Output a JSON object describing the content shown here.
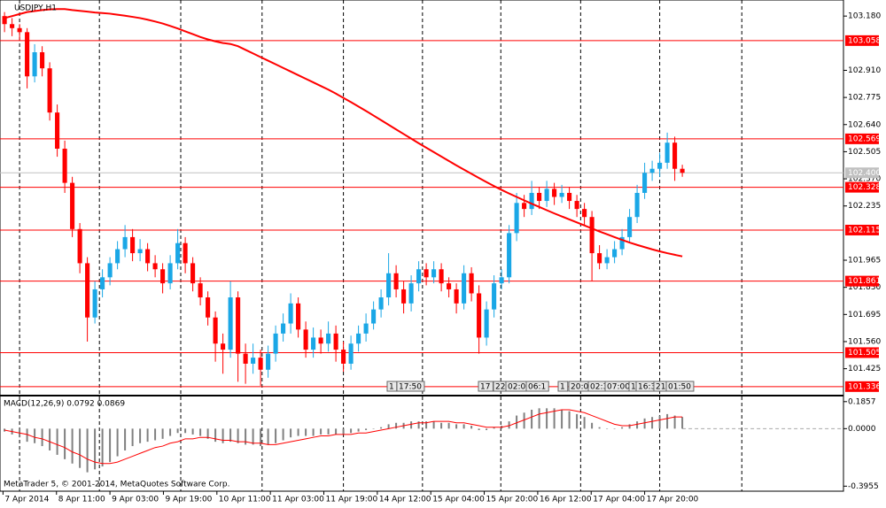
{
  "chart_data": {
    "type": "candlestick",
    "title": "USDJPY,H1",
    "footer": "MetaTrader 5, © 2001-2014, MetaQuotes Software Corp.",
    "bull_color": "#1aa7e6",
    "bear_color": "#ff0000",
    "grid": true,
    "xlim": [
      -0.6,
      111.4
    ],
    "xticks": [
      {
        "value": -0.2,
        "label": "7 Apr 2014"
      },
      {
        "value": 6.9,
        "label": "8 Apr 11:00"
      },
      {
        "value": 14.0,
        "label": "9 Apr 03:00"
      },
      {
        "value": 21.1,
        "label": "9 Apr 19:00"
      },
      {
        "value": 28.2,
        "label": "10 Apr 11:00"
      },
      {
        "value": 35.3,
        "label": "11 Apr 03:00"
      },
      {
        "value": 42.4,
        "label": "11 Apr 19:00"
      },
      {
        "value": 49.5,
        "label": "14 Apr 12:00"
      },
      {
        "value": 56.6,
        "label": "15 Apr 04:00"
      },
      {
        "value": 63.7,
        "label": "15 Apr 20:00"
      },
      {
        "value": 70.8,
        "label": "16 Apr 12:00"
      },
      {
        "value": 77.9,
        "label": "17 Apr 04:00"
      },
      {
        "value": 85.0,
        "label": "17 Apr 20:00"
      }
    ],
    "vgrid": [
      2.0,
      12.6,
      23.4,
      34.2,
      45.0,
      55.5,
      65.9,
      76.5,
      87.0,
      97.9
    ],
    "ylim": [
      101.3,
      103.26
    ],
    "yticks": [
      {
        "value": 103.18,
        "label": "103.180"
      },
      {
        "value": 102.91,
        "label": "102.910"
      },
      {
        "value": 102.775,
        "label": "102.775"
      },
      {
        "value": 102.64,
        "label": "102.640"
      },
      102.505,
      {
        "value": 102.37,
        "label": "102.370"
      },
      102.235,
      101.965,
      {
        "value": 101.83,
        "label": "101.830"
      },
      101.695,
      {
        "value": 101.56,
        "label": "101.560"
      },
      101.425
    ],
    "levels": [
      103.058,
      102.569,
      102.328,
      102.115,
      101.861,
      101.505,
      101.336
    ],
    "level_color": "#ff0000",
    "current_price": {
      "value": 102.4,
      "label": "102.400"
    },
    "events": [
      "1",
      "17:50",
      "17",
      "22",
      "02:00",
      "06:1",
      "1",
      "20:0",
      "02:3",
      "07:00",
      "1",
      "16:3",
      "21:",
      "01:50"
    ],
    "candles": [
      [
        103.18,
        103.2,
        103.1,
        103.14
      ],
      [
        103.14,
        103.17,
        103.08,
        103.12
      ],
      [
        103.12,
        103.14,
        103.06,
        103.1
      ],
      [
        103.1,
        103.12,
        102.82,
        102.88
      ],
      [
        102.88,
        103.04,
        102.85,
        103.0
      ],
      [
        103.0,
        103.03,
        102.88,
        102.92
      ],
      [
        102.92,
        102.95,
        102.66,
        102.7
      ],
      [
        102.7,
        102.74,
        102.48,
        102.52
      ],
      [
        102.52,
        102.56,
        102.3,
        102.35
      ],
      [
        102.35,
        102.38,
        102.08,
        102.12
      ],
      [
        102.12,
        102.15,
        101.9,
        101.95
      ],
      [
        101.95,
        101.98,
        101.56,
        101.68
      ],
      [
        101.68,
        101.86,
        101.65,
        101.82
      ],
      [
        101.82,
        101.92,
        101.78,
        101.88
      ],
      [
        101.88,
        101.98,
        101.84,
        101.95
      ],
      [
        101.95,
        102.06,
        101.92,
        102.02
      ],
      [
        102.02,
        102.14,
        101.98,
        102.08
      ],
      [
        102.08,
        102.12,
        101.96,
        102.0
      ],
      [
        102.0,
        102.07,
        101.96,
        102.02
      ],
      [
        102.02,
        102.05,
        101.91,
        101.95
      ],
      [
        101.95,
        101.99,
        101.88,
        101.92
      ],
      [
        101.92,
        101.95,
        101.8,
        101.85
      ],
      [
        101.85,
        101.99,
        101.82,
        101.95
      ],
      [
        101.95,
        102.12,
        101.92,
        102.05
      ],
      [
        102.05,
        102.08,
        101.9,
        101.95
      ],
      [
        101.95,
        101.98,
        101.81,
        101.85
      ],
      [
        101.85,
        101.88,
        101.74,
        101.78
      ],
      [
        101.78,
        101.81,
        101.64,
        101.68
      ],
      [
        101.68,
        101.71,
        101.46,
        101.55
      ],
      [
        101.55,
        101.6,
        101.4,
        101.52
      ],
      [
        101.52,
        101.86,
        101.48,
        101.78
      ],
      [
        101.78,
        101.81,
        101.36,
        101.5
      ],
      [
        101.5,
        101.55,
        101.35,
        101.45
      ],
      [
        101.45,
        101.55,
        101.4,
        101.48
      ],
      [
        101.48,
        101.52,
        101.34,
        101.42
      ],
      [
        101.42,
        101.54,
        101.38,
        101.5
      ],
      [
        101.5,
        101.64,
        101.46,
        101.6
      ],
      [
        101.6,
        101.7,
        101.56,
        101.65
      ],
      [
        101.65,
        101.8,
        101.6,
        101.75
      ],
      [
        101.75,
        101.78,
        101.58,
        101.62
      ],
      [
        101.62,
        101.66,
        101.48,
        101.52
      ],
      [
        101.52,
        101.63,
        101.48,
        101.58
      ],
      [
        101.58,
        101.62,
        101.5,
        101.55
      ],
      [
        101.55,
        101.66,
        101.51,
        101.6
      ],
      [
        101.6,
        101.64,
        101.46,
        101.52
      ],
      [
        101.52,
        101.56,
        101.41,
        101.45
      ],
      [
        101.45,
        101.59,
        101.42,
        101.55
      ],
      [
        101.55,
        101.64,
        101.51,
        101.6
      ],
      [
        101.6,
        101.7,
        101.56,
        101.65
      ],
      [
        101.65,
        101.76,
        101.62,
        101.72
      ],
      [
        101.72,
        101.82,
        101.68,
        101.78
      ],
      [
        101.78,
        102.0,
        101.74,
        101.9
      ],
      [
        101.9,
        101.94,
        101.78,
        101.82
      ],
      [
        101.82,
        101.86,
        101.7,
        101.75
      ],
      [
        101.75,
        101.89,
        101.71,
        101.85
      ],
      [
        101.85,
        101.96,
        101.81,
        101.92
      ],
      [
        101.92,
        101.95,
        101.84,
        101.88
      ],
      [
        101.88,
        101.96,
        101.85,
        101.92
      ],
      [
        101.92,
        101.95,
        101.81,
        101.85
      ],
      [
        101.85,
        101.88,
        101.78,
        101.82
      ],
      [
        101.82,
        101.85,
        101.7,
        101.75
      ],
      [
        101.75,
        101.94,
        101.72,
        101.9
      ],
      [
        101.9,
        101.93,
        101.76,
        101.8
      ],
      [
        101.8,
        101.84,
        101.5,
        101.58
      ],
      [
        101.58,
        101.76,
        101.54,
        101.72
      ],
      [
        101.72,
        101.89,
        101.68,
        101.85
      ],
      [
        101.85,
        101.92,
        101.82,
        101.88
      ],
      [
        101.88,
        102.14,
        101.85,
        102.1
      ],
      [
        102.1,
        102.3,
        102.06,
        102.25
      ],
      [
        102.25,
        102.29,
        102.18,
        102.22
      ],
      [
        102.22,
        102.36,
        102.19,
        102.3
      ],
      [
        102.3,
        102.33,
        102.22,
        102.26
      ],
      [
        102.26,
        102.36,
        102.23,
        102.32
      ],
      [
        102.32,
        102.35,
        102.24,
        102.28
      ],
      [
        102.28,
        102.34,
        102.25,
        102.3
      ],
      [
        102.3,
        102.33,
        102.22,
        102.26
      ],
      [
        102.26,
        102.29,
        102.18,
        102.22
      ],
      [
        102.22,
        102.25,
        102.14,
        102.18
      ],
      [
        102.18,
        102.21,
        101.86,
        102.0
      ],
      [
        102.0,
        102.04,
        101.92,
        101.95
      ],
      [
        101.95,
        102.02,
        101.92,
        101.98
      ],
      [
        101.98,
        102.06,
        101.95,
        102.02
      ],
      [
        102.02,
        102.12,
        101.99,
        102.08
      ],
      [
        102.08,
        102.22,
        102.05,
        102.18
      ],
      [
        102.18,
        102.34,
        102.15,
        102.3
      ],
      [
        102.3,
        102.45,
        102.27,
        102.4
      ],
      [
        102.4,
        102.46,
        102.36,
        102.42
      ],
      [
        102.42,
        102.5,
        102.38,
        102.45
      ],
      [
        102.45,
        102.6,
        102.42,
        102.55
      ],
      [
        102.55,
        102.58,
        102.36,
        102.42
      ],
      [
        102.42,
        102.44,
        102.38,
        102.4
      ]
    ],
    "ma": {
      "color": "#ff0000",
      "values": [
        103.17,
        103.18,
        103.19,
        103.2,
        103.205,
        103.21,
        103.213,
        103.215,
        103.215,
        103.21,
        103.206,
        103.202,
        103.198,
        103.195,
        103.192,
        103.187,
        103.182,
        103.176,
        103.17,
        103.162,
        103.153,
        103.143,
        103.131,
        103.118,
        103.104,
        103.09,
        103.076,
        103.064,
        103.054,
        103.046,
        103.041,
        103.03,
        103.012,
        102.994,
        102.976,
        102.958,
        102.94,
        102.922,
        102.904,
        102.886,
        102.868,
        102.85,
        102.832,
        102.814,
        102.794,
        102.773,
        102.752,
        102.73,
        102.708,
        102.685,
        102.662,
        102.639,
        102.616,
        102.593,
        102.57,
        102.547,
        102.525,
        102.503,
        102.481,
        102.459,
        102.437,
        102.416,
        102.395,
        102.374,
        102.354,
        102.334,
        102.315,
        102.297,
        102.28,
        102.263,
        102.246,
        102.23,
        102.214,
        102.198,
        102.183,
        102.168,
        102.153,
        102.138,
        102.123,
        102.108,
        102.094,
        102.08,
        102.066,
        102.053,
        102.041,
        102.03,
        102.019,
        102.009,
        102.0,
        101.992,
        101.984
      ]
    },
    "macd": {
      "label": "MACD(12,26,9) 0.0792 0.0869",
      "ylim": [
        -0.43,
        0.215
      ],
      "yticks": [
        0.1857,
        {
          "value": 0,
          "label": "0.0000"
        },
        -0.3955
      ],
      "hist_color": "#808080",
      "signal_color": "#ff0000",
      "hist": [
        -0.02,
        -0.04,
        -0.06,
        -0.09,
        -0.1,
        -0.12,
        -0.15,
        -0.18,
        -0.21,
        -0.24,
        -0.27,
        -0.3,
        -0.28,
        -0.26,
        -0.23,
        -0.19,
        -0.15,
        -0.12,
        -0.1,
        -0.09,
        -0.08,
        -0.07,
        -0.05,
        -0.03,
        -0.03,
        -0.04,
        -0.05,
        -0.07,
        -0.09,
        -0.1,
        -0.09,
        -0.1,
        -0.11,
        -0.11,
        -0.12,
        -0.11,
        -0.1,
        -0.08,
        -0.06,
        -0.05,
        -0.05,
        -0.05,
        -0.04,
        -0.04,
        -0.04,
        -0.04,
        -0.03,
        -0.02,
        -0.01,
        0.0,
        0.01,
        0.03,
        0.04,
        0.04,
        0.05,
        0.05,
        0.05,
        0.05,
        0.04,
        0.04,
        0.03,
        0.03,
        0.02,
        -0.01,
        -0.01,
        0.01,
        0.02,
        0.05,
        0.09,
        0.11,
        0.13,
        0.14,
        0.14,
        0.14,
        0.13,
        0.12,
        0.1,
        0.08,
        0.04,
        0.01,
        0.0,
        0.0,
        0.01,
        0.03,
        0.05,
        0.07,
        0.08,
        0.09,
        0.1,
        0.09,
        0.08
      ],
      "signal": [
        -0.01,
        -0.02,
        -0.03,
        -0.04,
        -0.06,
        -0.07,
        -0.09,
        -0.11,
        -0.13,
        -0.16,
        -0.18,
        -0.21,
        -0.23,
        -0.24,
        -0.24,
        -0.23,
        -0.21,
        -0.19,
        -0.17,
        -0.15,
        -0.13,
        -0.12,
        -0.1,
        -0.09,
        -0.07,
        -0.07,
        -0.06,
        -0.06,
        -0.07,
        -0.08,
        -0.08,
        -0.09,
        -0.09,
        -0.1,
        -0.1,
        -0.11,
        -0.11,
        -0.1,
        -0.09,
        -0.08,
        -0.07,
        -0.06,
        -0.05,
        -0.05,
        -0.04,
        -0.04,
        -0.04,
        -0.03,
        -0.03,
        -0.02,
        -0.01,
        0.0,
        0.01,
        0.02,
        0.03,
        0.04,
        0.04,
        0.05,
        0.05,
        0.05,
        0.04,
        0.04,
        0.03,
        0.02,
        0.01,
        0.01,
        0.01,
        0.02,
        0.04,
        0.06,
        0.08,
        0.1,
        0.11,
        0.12,
        0.13,
        0.13,
        0.12,
        0.11,
        0.09,
        0.07,
        0.05,
        0.03,
        0.02,
        0.02,
        0.03,
        0.04,
        0.05,
        0.06,
        0.07,
        0.08,
        0.08
      ]
    }
  }
}
